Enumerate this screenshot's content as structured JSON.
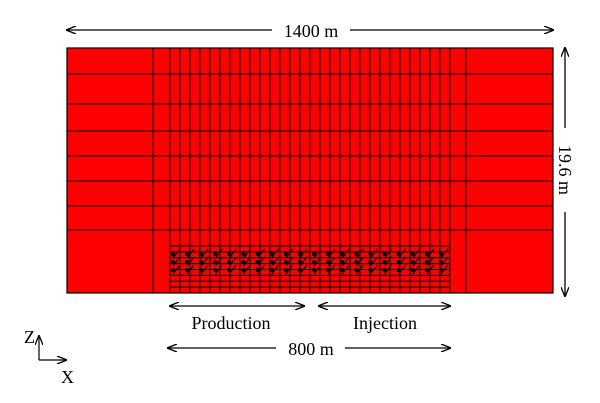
{
  "diagram": {
    "total_width_label": "1400 m",
    "thickness_label": "19.6 m",
    "production_label": "Production",
    "injection_label": "Injection",
    "refined_width_label": "800 m",
    "axis_z_label": "Z",
    "axis_x_label": "X"
  },
  "grid": {
    "block_color": "#ff0000",
    "line_color": "#000000",
    "refined_columns": 28,
    "coarse_layers": 7,
    "fine_layers": 8,
    "well_rows": 3,
    "wells_per_row": 20
  }
}
